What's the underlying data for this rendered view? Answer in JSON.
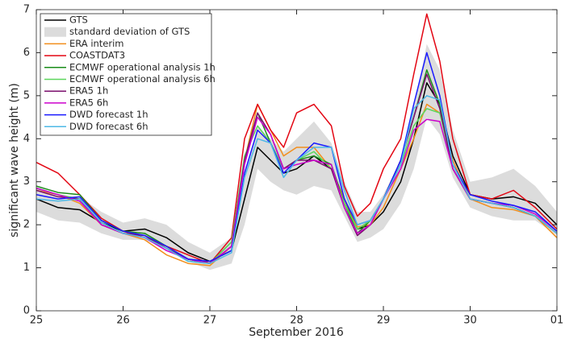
{
  "chart_data": {
    "type": "line",
    "xlabel": "September 2016",
    "ylabel": "significant wave height (m)",
    "x": [
      25,
      25.25,
      25.5,
      25.75,
      26,
      26.25,
      26.5,
      26.75,
      27,
      27.25,
      27.4,
      27.55,
      27.7,
      27.85,
      28,
      28.2,
      28.4,
      28.55,
      28.7,
      28.85,
      29,
      29.2,
      29.35,
      29.5,
      29.65,
      29.8,
      30,
      30.25,
      30.5,
      30.75,
      31
    ],
    "xlim": [
      25,
      31
    ],
    "xticks": [
      25,
      26,
      27,
      28,
      29,
      30,
      {
        "value": 31,
        "label": "01"
      }
    ],
    "ylim": [
      0,
      7
    ],
    "yticks": [
      0,
      1,
      2,
      3,
      4,
      5,
      6,
      7
    ],
    "band": {
      "name": "standard deviation of GTS",
      "color": "#dcdcdc",
      "upper": [
        2.9,
        2.7,
        2.65,
        2.3,
        2.05,
        2.15,
        2.0,
        1.6,
        1.35,
        1.7,
        3.2,
        4.3,
        4.0,
        3.7,
        4.0,
        4.4,
        3.9,
        3.0,
        2.3,
        2.3,
        2.7,
        3.5,
        4.7,
        6.2,
        5.6,
        4.2,
        3.0,
        3.1,
        3.3,
        2.9,
        2.3
      ],
      "lower": [
        2.3,
        2.1,
        2.05,
        1.8,
        1.65,
        1.65,
        1.45,
        1.15,
        0.95,
        1.1,
        2.0,
        3.3,
        3.0,
        2.8,
        2.7,
        2.9,
        2.8,
        2.2,
        1.6,
        1.7,
        1.9,
        2.5,
        3.3,
        4.5,
        4.1,
        3.1,
        2.4,
        2.2,
        2.1,
        2.1,
        1.75
      ]
    },
    "series": [
      {
        "name": "GTS",
        "color": "#000000",
        "values": [
          2.6,
          2.4,
          2.35,
          2.05,
          1.85,
          1.9,
          1.7,
          1.35,
          1.15,
          1.4,
          2.6,
          3.8,
          3.5,
          3.2,
          3.3,
          3.6,
          3.3,
          2.6,
          1.9,
          2.0,
          2.3,
          3.0,
          4.0,
          5.3,
          4.8,
          3.6,
          2.7,
          2.6,
          2.65,
          2.5,
          2.0
        ]
      },
      {
        "name": "ERA interim",
        "color": "#f28e1c",
        "values": [
          2.8,
          2.7,
          2.5,
          2.0,
          1.8,
          1.65,
          1.3,
          1.1,
          1.05,
          1.5,
          3.5,
          4.8,
          4.2,
          3.6,
          3.8,
          3.8,
          3.3,
          2.6,
          1.95,
          2.0,
          2.4,
          3.3,
          4.0,
          4.8,
          4.6,
          3.5,
          2.6,
          2.4,
          2.35,
          2.2,
          1.7
        ]
      },
      {
        "name": "COASTDAT3",
        "color": "#e30613",
        "values": [
          3.45,
          3.2,
          2.7,
          2.15,
          1.85,
          1.7,
          1.5,
          1.3,
          1.1,
          1.7,
          4.0,
          4.8,
          4.2,
          3.8,
          4.6,
          4.8,
          4.3,
          2.9,
          2.2,
          2.5,
          3.3,
          4.0,
          5.5,
          6.9,
          5.8,
          4.0,
          2.7,
          2.6,
          2.8,
          2.4,
          1.9
        ]
      },
      {
        "name": "ECMWF operational analysis 1h",
        "color": "#1a8c1a",
        "values": [
          2.9,
          2.75,
          2.7,
          2.1,
          1.85,
          1.8,
          1.5,
          1.2,
          1.1,
          1.6,
          3.5,
          4.6,
          3.9,
          3.3,
          3.5,
          3.6,
          3.4,
          2.5,
          1.8,
          2.1,
          2.6,
          3.5,
          4.5,
          5.6,
          4.8,
          3.3,
          2.6,
          2.5,
          2.4,
          2.2,
          1.8
        ]
      },
      {
        "name": "ECMWF operational analysis 6h",
        "color": "#5cd65c",
        "values": [
          2.85,
          2.7,
          2.6,
          2.05,
          1.8,
          1.75,
          1.45,
          1.15,
          1.1,
          1.6,
          3.6,
          4.3,
          3.9,
          3.3,
          3.5,
          3.7,
          3.3,
          2.5,
          1.9,
          2.1,
          2.6,
          3.4,
          4.3,
          4.7,
          4.6,
          3.3,
          2.6,
          2.5,
          2.4,
          2.2,
          1.8
        ]
      },
      {
        "name": "ERA5 1h",
        "color": "#7b0f6e",
        "values": [
          2.8,
          2.65,
          2.6,
          2.0,
          1.8,
          1.75,
          1.45,
          1.2,
          1.1,
          1.5,
          3.5,
          4.6,
          4.1,
          3.3,
          3.5,
          3.5,
          3.3,
          2.4,
          1.75,
          2.0,
          2.6,
          3.5,
          4.5,
          5.5,
          4.7,
          3.3,
          2.6,
          2.5,
          2.4,
          2.2,
          1.8
        ]
      },
      {
        "name": "ERA5 6h",
        "color": "#cc00cc",
        "values": [
          2.85,
          2.7,
          2.55,
          2.0,
          1.8,
          1.7,
          1.4,
          1.2,
          1.1,
          1.5,
          3.4,
          4.5,
          4.1,
          3.3,
          3.4,
          3.5,
          3.4,
          2.4,
          1.8,
          2.0,
          2.6,
          3.3,
          4.2,
          4.45,
          4.4,
          3.3,
          2.6,
          2.5,
          2.45,
          2.25,
          1.85
        ]
      },
      {
        "name": "DWD forecast 1h",
        "color": "#1a1aff",
        "values": [
          2.7,
          2.6,
          2.65,
          2.1,
          1.85,
          1.75,
          1.5,
          1.2,
          1.15,
          1.4,
          3.2,
          4.2,
          3.9,
          3.2,
          3.5,
          3.9,
          3.8,
          2.6,
          2.0,
          2.1,
          2.6,
          3.5,
          4.8,
          6.0,
          5.0,
          3.4,
          2.7,
          2.55,
          2.45,
          2.3,
          1.85
        ]
      },
      {
        "name": "DWD forecast 6h",
        "color": "#4db8e6",
        "values": [
          2.6,
          2.55,
          2.6,
          2.05,
          1.8,
          1.7,
          1.45,
          1.15,
          1.1,
          1.35,
          3.1,
          4.0,
          3.9,
          3.1,
          3.5,
          3.8,
          3.8,
          2.8,
          2.0,
          2.1,
          2.6,
          3.4,
          4.7,
          5.0,
          4.9,
          3.4,
          2.6,
          2.5,
          2.4,
          2.2,
          1.8
        ]
      }
    ]
  }
}
